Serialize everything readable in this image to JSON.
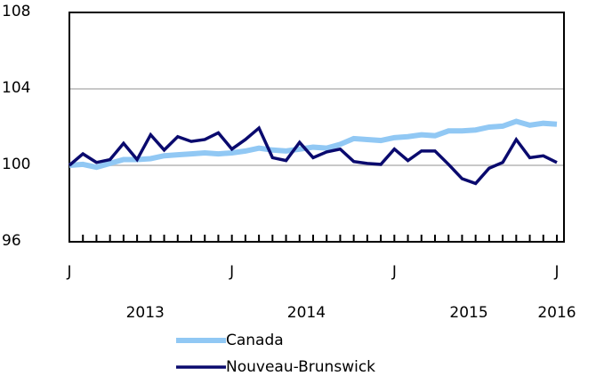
{
  "chart_data": {
    "type": "line",
    "categories": [
      "J",
      null,
      null,
      null,
      null,
      null,
      null,
      null,
      null,
      null,
      null,
      null,
      "J",
      null,
      null,
      null,
      null,
      null,
      null,
      null,
      null,
      null,
      null,
      null,
      "J",
      null,
      null,
      null,
      null,
      null,
      null,
      null,
      null,
      null,
      null,
      null,
      "J"
    ],
    "year_labels": [
      "2013",
      "2014",
      "2015",
      "2016"
    ],
    "series": [
      {
        "name": "Canada",
        "color": "#91c8f4",
        "values": [
          100.0,
          100.05,
          99.9,
          100.1,
          100.3,
          100.3,
          100.35,
          100.5,
          100.55,
          100.6,
          100.65,
          100.6,
          100.65,
          100.75,
          100.9,
          100.8,
          100.75,
          100.85,
          100.95,
          100.9,
          101.1,
          101.4,
          101.35,
          101.3,
          101.45,
          101.5,
          101.6,
          101.55,
          101.8,
          101.8,
          101.85,
          102.0,
          102.05,
          102.3,
          102.1,
          102.2,
          102.15
        ]
      },
      {
        "name": "Nouveau-Brunswick",
        "color": "#0a0a6e",
        "values": [
          100.0,
          100.6,
          100.15,
          100.3,
          101.15,
          100.3,
          101.6,
          100.8,
          101.5,
          101.25,
          101.35,
          101.7,
          100.85,
          101.35,
          101.95,
          100.4,
          100.25,
          101.2,
          100.4,
          100.7,
          100.85,
          100.2,
          100.1,
          100.05,
          100.85,
          100.25,
          100.75,
          100.75,
          100.05,
          99.3,
          99.05,
          99.85,
          100.15,
          101.35,
          100.4,
          100.5,
          100.15
        ]
      }
    ],
    "ylim": [
      96,
      108
    ],
    "yticks": [
      96,
      100,
      104,
      108
    ],
    "grid": true
  }
}
